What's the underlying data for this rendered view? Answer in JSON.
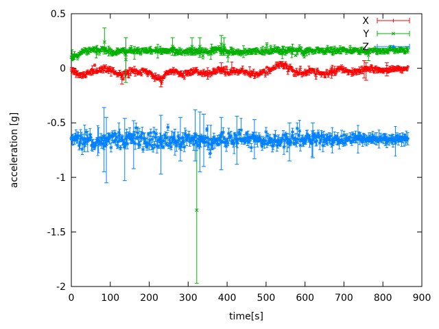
{
  "chart_data": {
    "type": "scatter",
    "plot_style": "yerrorbars",
    "title": "",
    "xlabel": "time[s]",
    "ylabel": "acceleration [g]",
    "xlim": [
      0,
      900
    ],
    "ylim": [
      -2,
      0.5
    ],
    "grid": false,
    "xticks": [
      0,
      100,
      200,
      300,
      400,
      500,
      600,
      700,
      800,
      900
    ],
    "xtick_labels": [
      "0",
      "100",
      "200",
      "300",
      "400",
      "500",
      "600",
      "700",
      "800",
      "900"
    ],
    "yticks": [
      -2,
      -1.5,
      -1,
      -0.5,
      0,
      0.5
    ],
    "ytick_labels": [
      "-2",
      "-1.5",
      "-1",
      "-0.5",
      "0",
      "0.5"
    ],
    "legend": {
      "position": "top-right",
      "entries": [
        "X",
        "Y",
        "Z"
      ]
    },
    "t_start": 0,
    "t_end": 865,
    "t_step": 2,
    "series": [
      {
        "name": "X",
        "color": "#ff0000",
        "marker": "plus",
        "noise_seed": 11,
        "mean_trend": [
          [
            0,
            -0.01
          ],
          [
            12,
            -0.04
          ],
          [
            30,
            -0.055
          ],
          [
            55,
            -0.03
          ],
          [
            80,
            -0.008
          ],
          [
            100,
            -0.012
          ],
          [
            115,
            -0.05
          ],
          [
            130,
            -0.06
          ],
          [
            145,
            -0.028
          ],
          [
            160,
            -0.02
          ],
          [
            175,
            -0.035
          ],
          [
            190,
            -0.022
          ],
          [
            205,
            -0.05
          ],
          [
            222,
            -0.09
          ],
          [
            233,
            -0.095
          ],
          [
            245,
            -0.04
          ],
          [
            260,
            -0.022
          ],
          [
            278,
            -0.05
          ],
          [
            292,
            -0.05
          ],
          [
            305,
            -0.028
          ],
          [
            320,
            -0.02
          ],
          [
            335,
            -0.038
          ],
          [
            350,
            -0.065
          ],
          [
            365,
            -0.04
          ],
          [
            378,
            -0.008
          ],
          [
            390,
            -0.012
          ],
          [
            400,
            -0.04
          ],
          [
            412,
            -0.028
          ],
          [
            425,
            -0.038
          ],
          [
            440,
            -0.022
          ],
          [
            455,
            -0.04
          ],
          [
            470,
            -0.052
          ],
          [
            485,
            -0.055
          ],
          [
            500,
            -0.035
          ],
          [
            515,
            -0.008
          ],
          [
            532,
            0.028
          ],
          [
            548,
            0.03
          ],
          [
            560,
            0.005
          ],
          [
            572,
            -0.042
          ],
          [
            585,
            -0.05
          ],
          [
            600,
            -0.042
          ],
          [
            615,
            -0.02
          ],
          [
            630,
            -0.035
          ],
          [
            645,
            -0.055
          ],
          [
            660,
            -0.05
          ],
          [
            675,
            -0.025
          ],
          [
            690,
            -0.008
          ],
          [
            705,
            -0.015
          ],
          [
            720,
            -0.035
          ],
          [
            736,
            -0.03
          ],
          [
            750,
            -0.01
          ],
          [
            765,
            -0.008
          ],
          [
            790,
            -0.012
          ],
          [
            815,
            -0.015
          ],
          [
            840,
            -0.01
          ],
          [
            865,
            -0.005
          ]
        ],
        "noise_spread": [
          [
            0,
            0.012
          ],
          [
            865,
            0.011
          ]
        ],
        "errorbar_halfsize": 0.013,
        "outliers": [
          [
            130,
            -0.1,
            -0.145,
            -0.06
          ],
          [
            230,
            -0.12,
            -0.17,
            -0.07
          ],
          [
            385,
            0.0,
            -0.05,
            0.05
          ],
          [
            752,
            0.0,
            -0.09,
            0.07
          ],
          [
            757,
            -0.02,
            -0.11,
            0.05
          ],
          [
            810,
            -0.01,
            -0.07,
            0.05
          ]
        ]
      },
      {
        "name": "Y",
        "color": "#00b000",
        "marker": "cross",
        "noise_seed": 22,
        "mean_trend": [
          [
            0,
            0.105
          ],
          [
            8,
            0.12
          ],
          [
            20,
            0.142
          ],
          [
            40,
            0.162
          ],
          [
            60,
            0.168
          ],
          [
            90,
            0.162
          ],
          [
            120,
            0.15
          ],
          [
            150,
            0.155
          ],
          [
            180,
            0.163
          ],
          [
            210,
            0.162
          ],
          [
            240,
            0.155
          ],
          [
            270,
            0.16
          ],
          [
            300,
            0.152
          ],
          [
            330,
            0.15
          ],
          [
            360,
            0.155
          ],
          [
            385,
            0.168
          ],
          [
            400,
            0.155
          ],
          [
            440,
            0.15
          ],
          [
            480,
            0.155
          ],
          [
            520,
            0.162
          ],
          [
            560,
            0.158
          ],
          [
            600,
            0.155
          ],
          [
            640,
            0.162
          ],
          [
            680,
            0.163
          ],
          [
            720,
            0.158
          ],
          [
            760,
            0.162
          ],
          [
            800,
            0.163
          ],
          [
            835,
            0.168
          ],
          [
            865,
            0.168
          ]
        ],
        "noise_spread": [
          [
            0,
            0.012
          ],
          [
            865,
            0.011
          ]
        ],
        "errorbar_halfsize": 0.014,
        "outliers": [
          [
            85,
            0.24,
            0.13,
            0.37
          ],
          [
            140,
            0.08,
            -0.13,
            0.28
          ],
          [
            260,
            0.2,
            0.12,
            0.28
          ],
          [
            310,
            0.2,
            0.12,
            0.28
          ],
          [
            322,
            -1.3,
            -1.97,
            -0.62
          ],
          [
            330,
            0.2,
            0.1,
            0.28
          ],
          [
            385,
            0.22,
            0.12,
            0.3
          ],
          [
            392,
            0.21,
            0.12,
            0.28
          ],
          [
            763,
            0.12,
            0.07,
            0.17
          ]
        ]
      },
      {
        "name": "Z",
        "color": "#0080ff",
        "marker": "star",
        "noise_seed": 33,
        "mean_trend": [
          [
            0,
            -0.665
          ],
          [
            60,
            -0.66
          ],
          [
            120,
            -0.662
          ],
          [
            180,
            -0.665
          ],
          [
            240,
            -0.663
          ],
          [
            300,
            -0.658
          ],
          [
            360,
            -0.662
          ],
          [
            420,
            -0.663
          ],
          [
            480,
            -0.657
          ],
          [
            540,
            -0.66
          ],
          [
            600,
            -0.656
          ],
          [
            660,
            -0.652
          ],
          [
            720,
            -0.65
          ],
          [
            780,
            -0.65
          ],
          [
            865,
            -0.648
          ]
        ],
        "noise_spread": [
          [
            0,
            0.034
          ],
          [
            100,
            0.038
          ],
          [
            300,
            0.036
          ],
          [
            500,
            0.033
          ],
          [
            650,
            0.027
          ],
          [
            730,
            0.018
          ],
          [
            790,
            0.013
          ],
          [
            865,
            0.012
          ]
        ],
        "errorbar_halfsize": 0.03,
        "outliers": [
          [
            84,
            -0.62,
            -0.95,
            -0.36
          ],
          [
            90,
            -0.7,
            -1.05,
            -0.45
          ],
          [
            137,
            -0.72,
            -1.03,
            -0.46
          ],
          [
            160,
            -0.68,
            -0.92,
            -0.48
          ],
          [
            230,
            -0.7,
            -0.97,
            -0.43
          ],
          [
            280,
            -0.64,
            -0.85,
            -0.45
          ],
          [
            318,
            -0.6,
            -0.85,
            -0.38
          ],
          [
            330,
            -0.63,
            -0.95,
            -0.4
          ],
          [
            340,
            -0.68,
            -0.9,
            -0.42
          ],
          [
            385,
            -0.68,
            -0.93,
            -0.45
          ],
          [
            425,
            -0.66,
            -0.88,
            -0.44
          ],
          [
            470,
            -0.65,
            -0.83,
            -0.47
          ],
          [
            560,
            -0.67,
            -0.85,
            -0.5
          ],
          [
            620,
            -0.66,
            -0.82,
            -0.5
          ]
        ]
      }
    ],
    "axis_color": "#000000",
    "background_color": "#ffffff"
  }
}
